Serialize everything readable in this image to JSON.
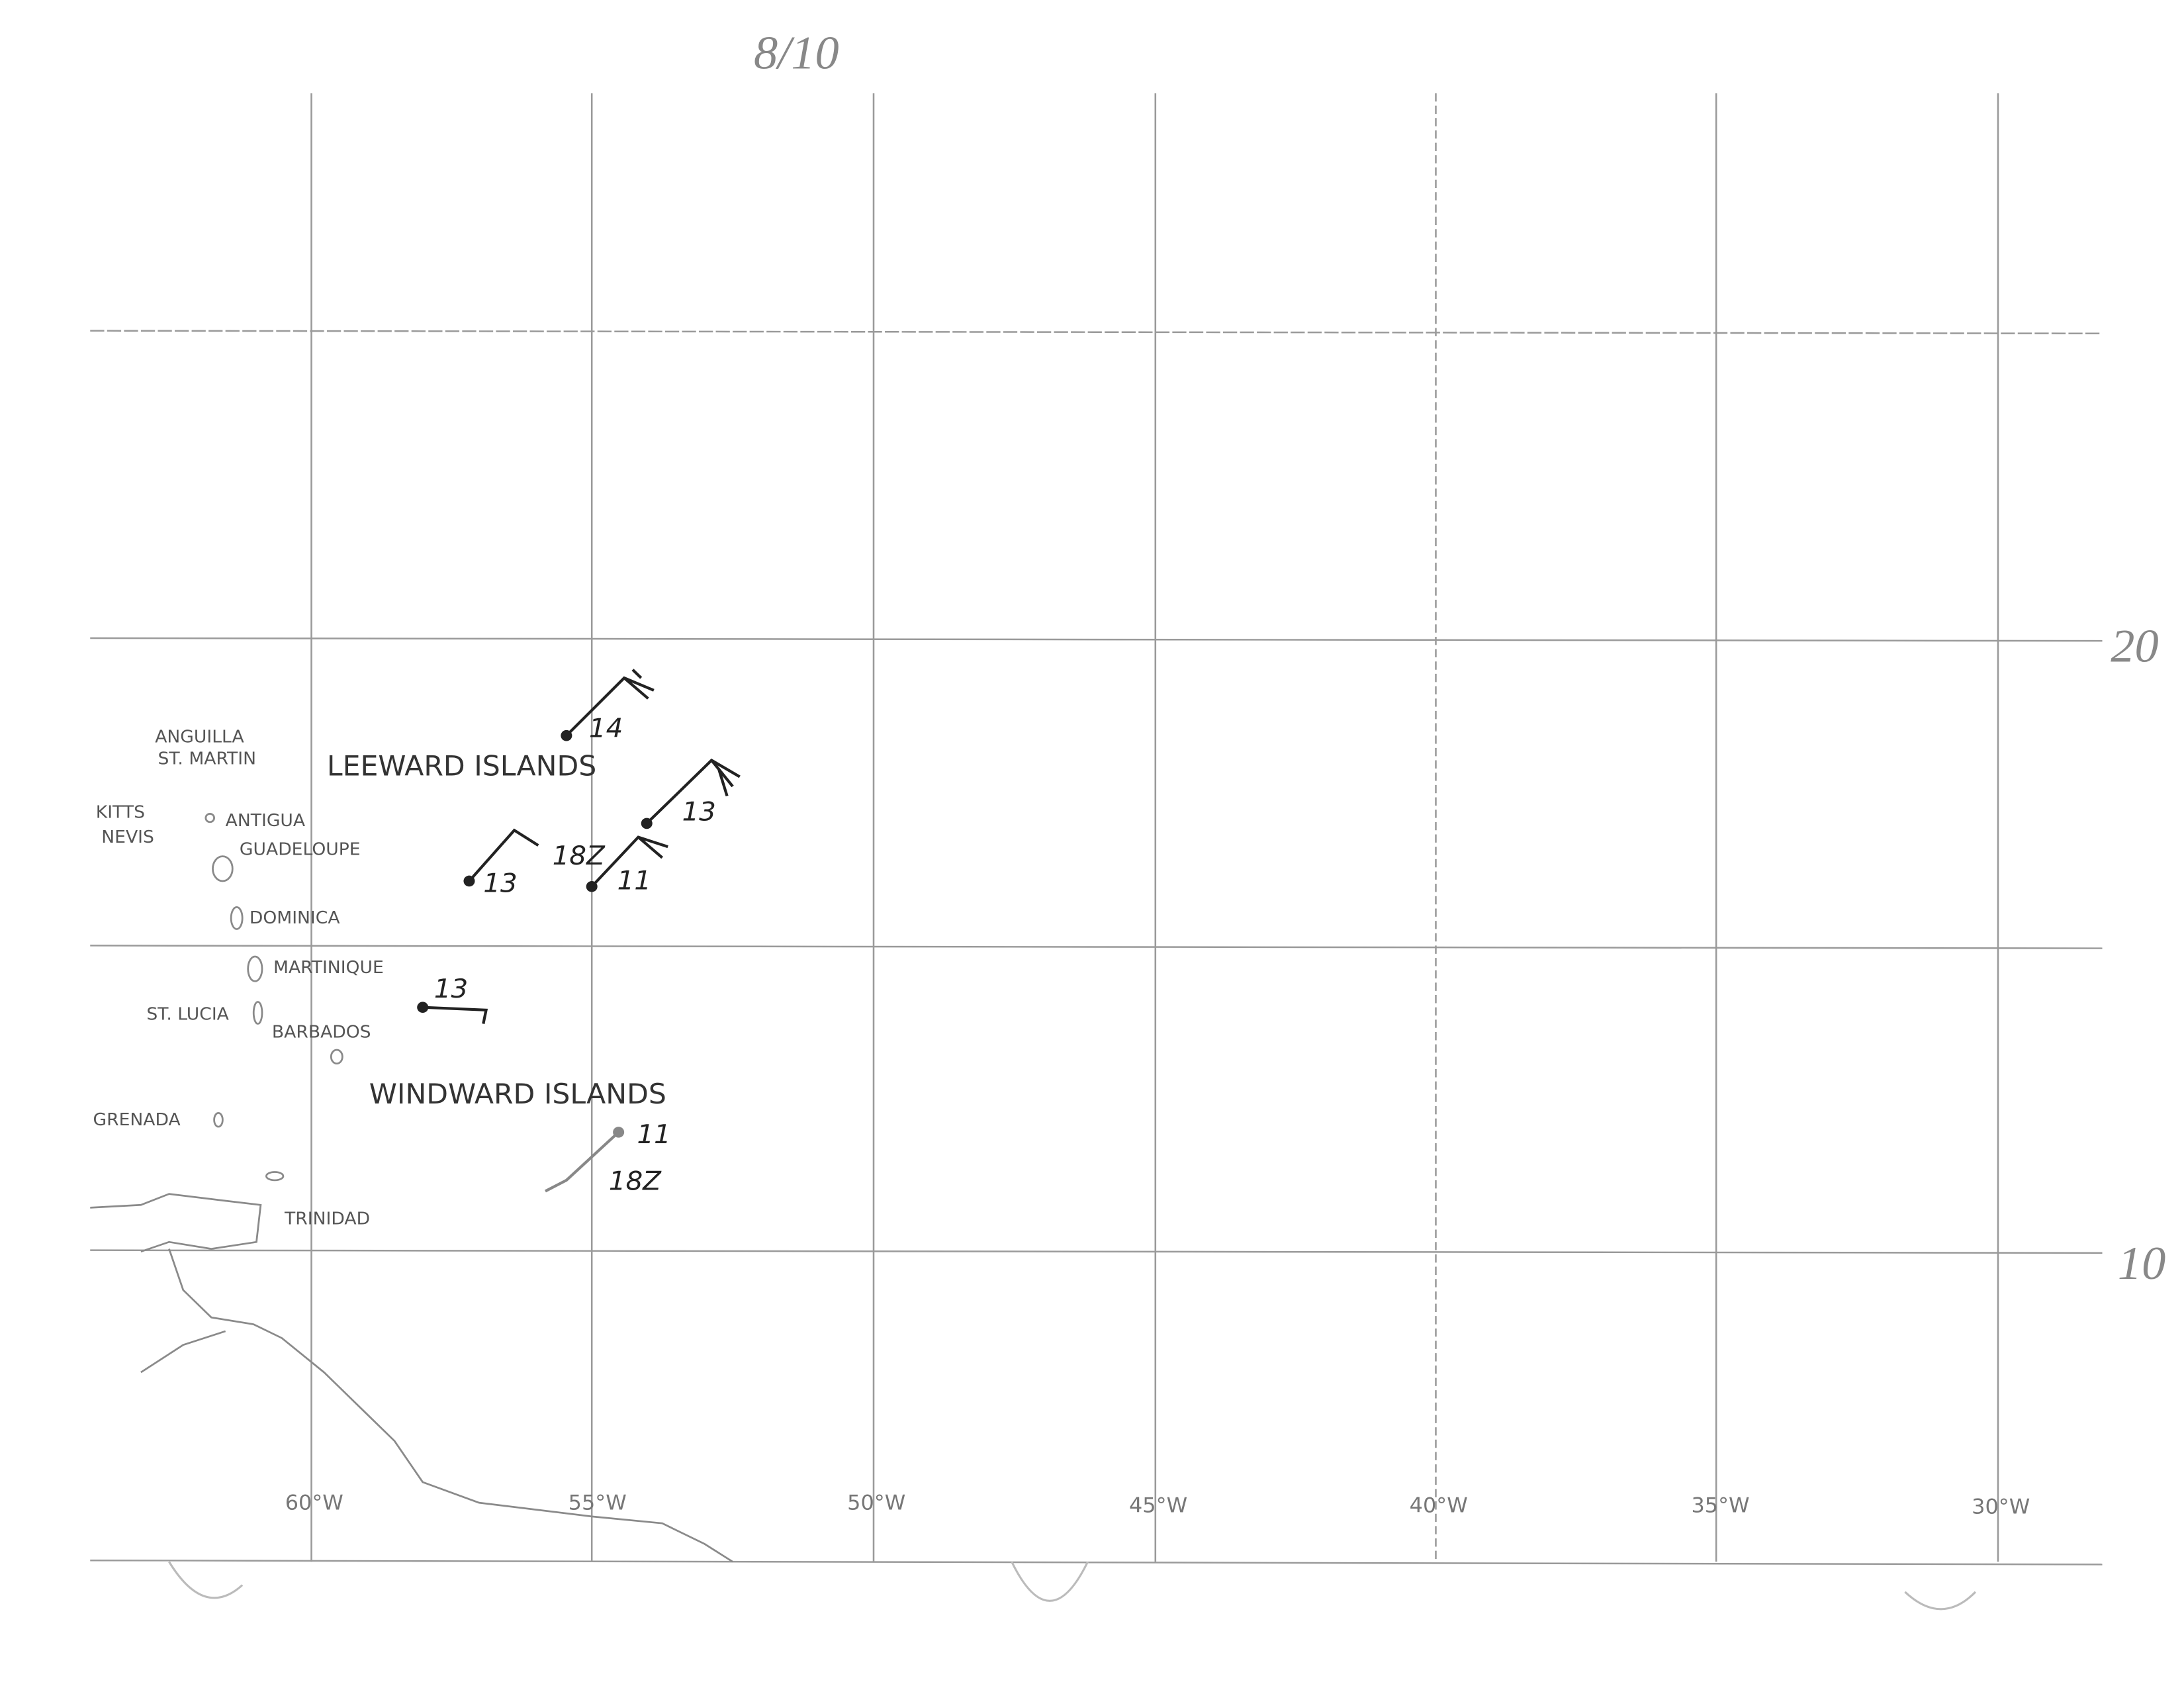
{
  "title": "8/10",
  "latitude_labels": [
    "20",
    "10"
  ],
  "longitude_labels": [
    "60°W",
    "55°W",
    "50°W",
    "45°W",
    "40°W",
    "35°W",
    "30°W"
  ],
  "regions": [
    "LEEWARD ISLANDS",
    "WINDWARD ISLANDS"
  ],
  "places": [
    "ANGUILLA",
    "ST. MARTIN",
    "KITTS",
    "NEVIS",
    "ANTIGUA",
    "GUADELOUPE",
    "DOMINICA",
    "MARTINIQUE",
    "ST. LUCIA",
    "BARBADOS",
    "GRENADA",
    "TRINIDAD"
  ],
  "annotations": [
    "14",
    "13",
    "18Z",
    "13",
    "11",
    "13",
    "11",
    "18Z"
  ]
}
